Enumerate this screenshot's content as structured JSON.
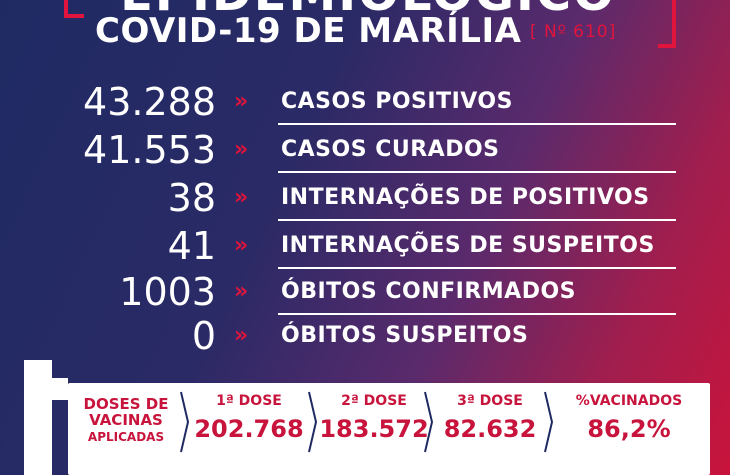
{
  "header": {
    "title": "EPIDEMIOLÓGICO",
    "subtitle": "COVID-19 DE MARÍLIA",
    "issue": "[ Nº 610]"
  },
  "arrow_glyph": "»",
  "stats": [
    {
      "value": "43.288",
      "label": "CASOS POSITIVOS"
    },
    {
      "value": "41.553",
      "label": "CASOS CURADOS"
    },
    {
      "value": "38",
      "label": "INTERNAÇÕES DE POSITIVOS"
    },
    {
      "value": "41",
      "label": "INTERNAÇÕES DE SUSPEITOS"
    },
    {
      "value": "1003",
      "label": "ÓBITOS CONFIRMADOS"
    },
    {
      "value": "0",
      "label": "ÓBITOS SUSPEITOS"
    }
  ],
  "vaccines": {
    "heading_line1": "DOSES DE",
    "heading_line2": "VACINAS",
    "heading_line3": "APLICADAS",
    "columns": [
      {
        "label": "1ª DOSE",
        "value": "202.768"
      },
      {
        "label": "2ª DOSE",
        "value": "183.572"
      },
      {
        "label": "3ª DOSE",
        "value": "82.632"
      },
      {
        "label": "%VACINADOS",
        "value": "86,2%"
      }
    ]
  },
  "colors": {
    "accent": "#e0143c",
    "text_red": "#c8143c",
    "background_start": "#1f2a63",
    "background_end": "#c9143c"
  }
}
